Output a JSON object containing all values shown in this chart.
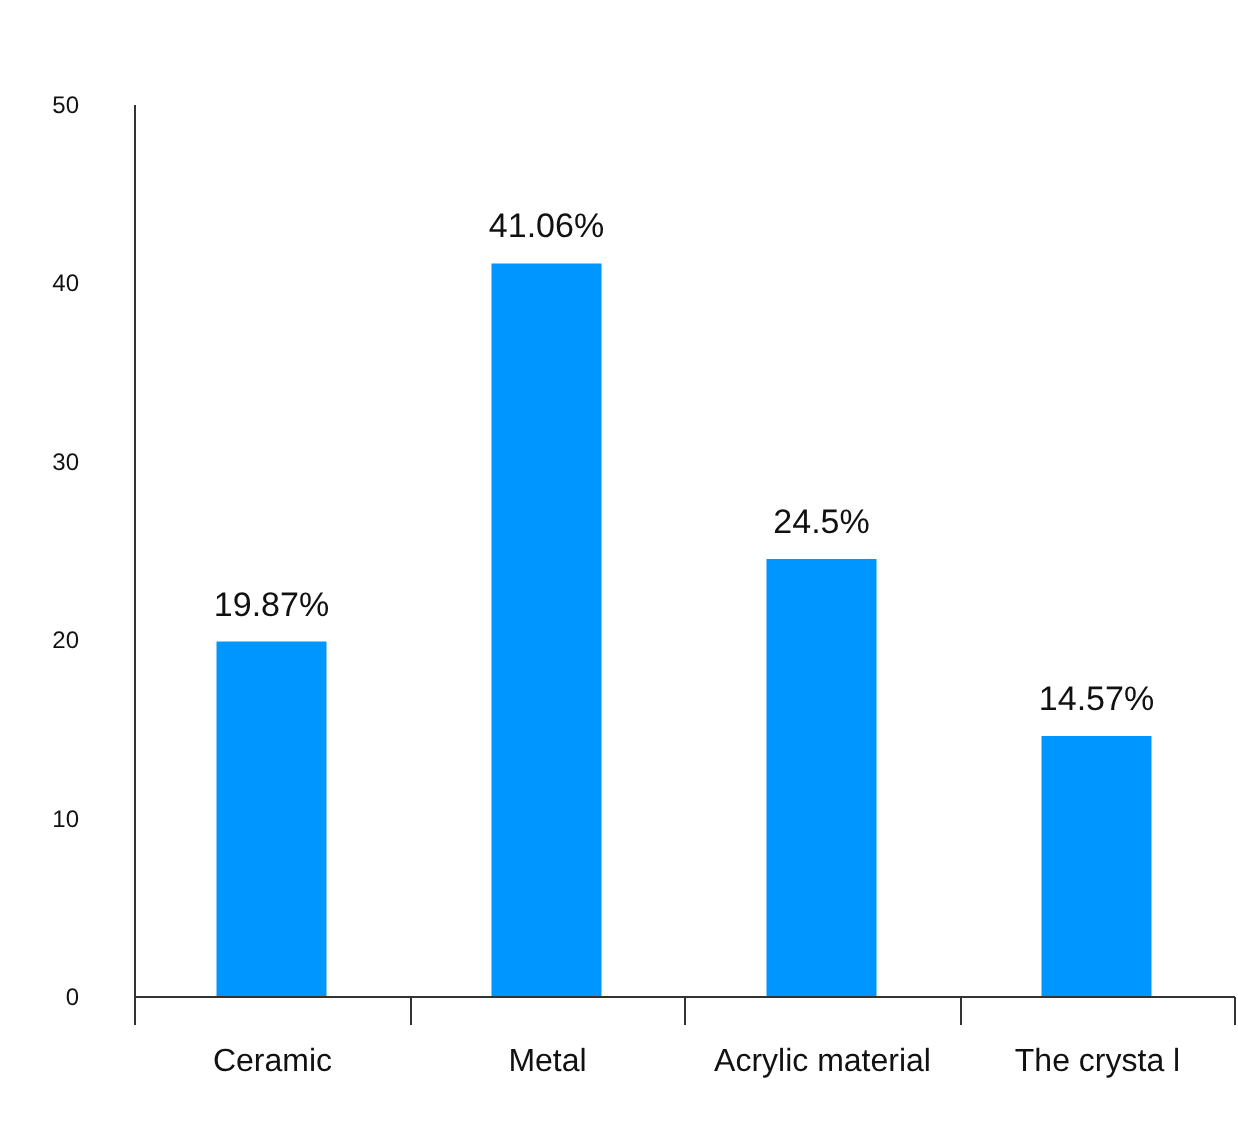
{
  "chart_data": {
    "type": "bar",
    "categories": [
      "Ceramic",
      "Metal",
      "Acrylic material",
      "The crysta l"
    ],
    "values": [
      19.87,
      41.06,
      24.5,
      14.57
    ],
    "value_labels": [
      "19.87%",
      "41.06%",
      "24.5%",
      "14.57%"
    ],
    "color": "#0096ff",
    "ylim": [
      0,
      50
    ],
    "yticks": [
      0,
      10,
      20,
      30,
      40,
      50
    ],
    "grid": false
  }
}
